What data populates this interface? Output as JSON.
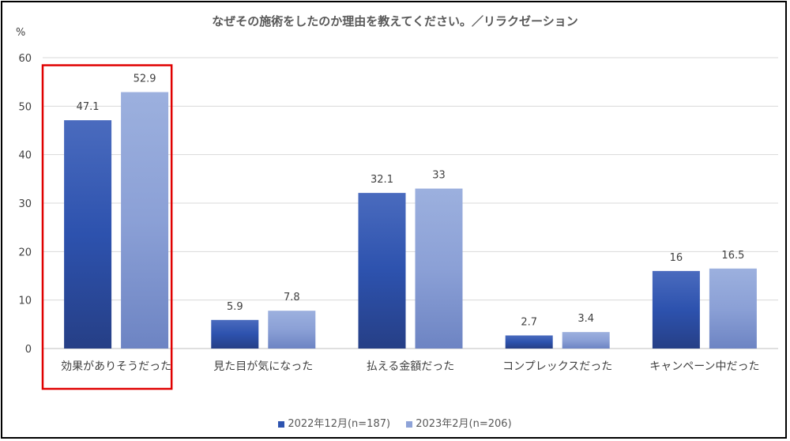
{
  "chart_data": {
    "type": "bar",
    "title": "なぜその施術をしたのか理由を教えてください。／リラクゼーション",
    "unit": "%",
    "ylim": [
      0,
      60
    ],
    "yticks": [
      0,
      10,
      20,
      30,
      40,
      50,
      60
    ],
    "grid": true,
    "legend_position": "bottom",
    "categories": [
      "効果がありそうだった",
      "見た目が気になった",
      "払える金額だった",
      "コンプレックスだった",
      "キャンペーン中だった"
    ],
    "series": [
      {
        "name": "2022年12月(n=187)",
        "values": [
          47.1,
          5.9,
          32.1,
          2.7,
          16
        ],
        "labels": [
          "47.1",
          "5.9",
          "32.1",
          "2.7",
          "16"
        ],
        "color": "#2e54b0"
      },
      {
        "name": "2023年2月(n=206)",
        "values": [
          52.9,
          7.8,
          33,
          3.4,
          16.5
        ],
        "labels": [
          "52.9",
          "7.8",
          "33",
          "3.4",
          "16.5"
        ],
        "color": "#8ea3d8"
      }
    ],
    "highlight": {
      "category_index": 0,
      "color": "#e00000"
    }
  }
}
